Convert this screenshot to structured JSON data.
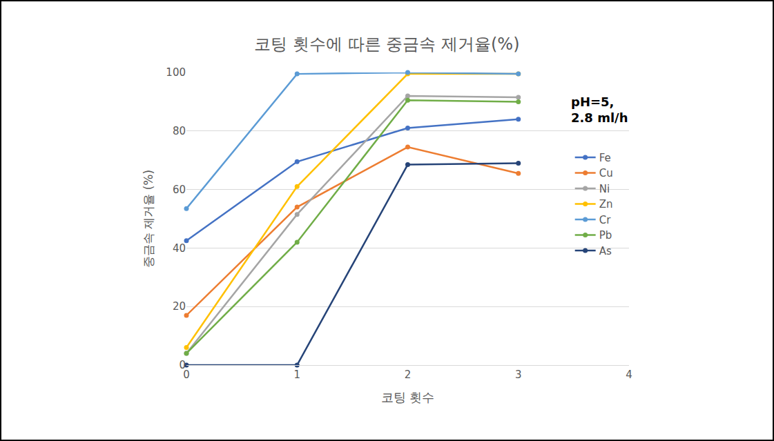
{
  "chart_data": {
    "type": "line",
    "title": "코팅 횟수에 따른 중금속 제거율(%)",
    "x_label": "코팅 횟수",
    "y_label": "중금속 제거율 (%)",
    "annotation": [
      "pH=5,",
      "2.8 ml/h"
    ],
    "x": [
      0,
      1,
      2,
      3
    ],
    "xlim": [
      0,
      4
    ],
    "xticks": [
      0,
      1,
      2,
      3,
      4
    ],
    "ylim": [
      0,
      100
    ],
    "yticks": [
      0,
      20,
      40,
      60,
      80,
      100
    ],
    "grid": true,
    "legend": "right",
    "marker": "circle",
    "series": [
      {
        "name": "Fe",
        "color": "#4472c4",
        "values": [
          42.5,
          69.5,
          81,
          84
        ]
      },
      {
        "name": "Cu",
        "color": "#ed7d31",
        "values": [
          17,
          54,
          74.5,
          65.5
        ]
      },
      {
        "name": "Ni",
        "color": "#a5a5a5",
        "values": [
          4,
          51.5,
          92,
          91.5
        ]
      },
      {
        "name": "Zn",
        "color": "#ffc000",
        "values": [
          6,
          61,
          99.5,
          99.5
        ]
      },
      {
        "name": "Cr",
        "color": "#5b9bd5",
        "values": [
          53.5,
          99.5,
          100,
          99.5
        ]
      },
      {
        "name": "Pb",
        "color": "#70ad47",
        "values": [
          4,
          42,
          90.5,
          90
        ]
      },
      {
        "name": "As",
        "color": "#264478",
        "values": [
          0,
          0,
          68.5,
          69
        ]
      }
    ]
  }
}
